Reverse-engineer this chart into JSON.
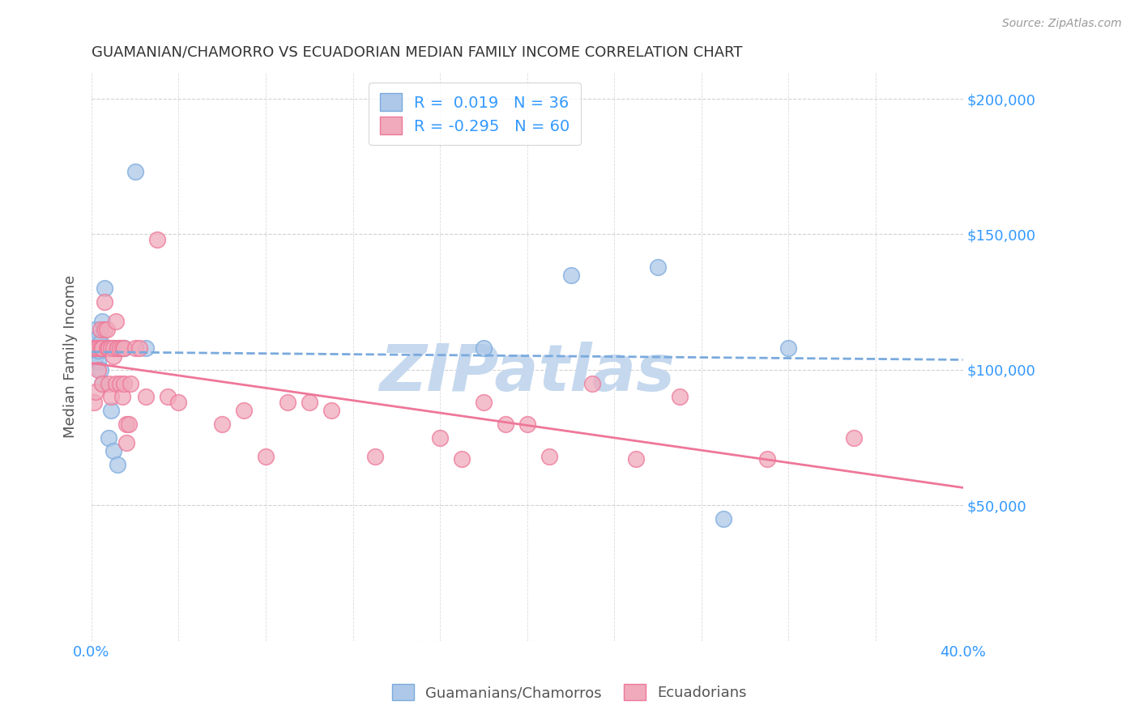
{
  "title": "GUAMANIAN/CHAMORRO VS ECUADORIAN MEDIAN FAMILY INCOME CORRELATION CHART",
  "source": "Source: ZipAtlas.com",
  "ylabel": "Median Family Income",
  "right_yticks": [
    0,
    50000,
    100000,
    150000,
    200000
  ],
  "right_yticklabels": [
    "",
    "$50,000",
    "$100,000",
    "$150,000",
    "$200,000"
  ],
  "legend_blue_r": "R =  0.019",
  "legend_blue_n": "N = 36",
  "legend_pink_r": "R = -0.295",
  "legend_pink_n": "N = 60",
  "watermark": "ZIPatlas",
  "blue_scatter_x": [
    0.001,
    0.001,
    0.002,
    0.002,
    0.002,
    0.003,
    0.003,
    0.003,
    0.003,
    0.004,
    0.004,
    0.004,
    0.004,
    0.005,
    0.005,
    0.005,
    0.006,
    0.006,
    0.006,
    0.007,
    0.007,
    0.007,
    0.008,
    0.008,
    0.009,
    0.01,
    0.01,
    0.012,
    0.015,
    0.02,
    0.025,
    0.18,
    0.22,
    0.26,
    0.29,
    0.32
  ],
  "blue_scatter_y": [
    110000,
    108000,
    108000,
    105000,
    115000,
    108000,
    103000,
    112000,
    107000,
    108000,
    100000,
    108000,
    110000,
    95000,
    118000,
    108000,
    130000,
    108000,
    108000,
    108000,
    108000,
    108000,
    108000,
    75000,
    85000,
    70000,
    108000,
    65000,
    108000,
    173000,
    108000,
    108000,
    135000,
    138000,
    45000,
    108000
  ],
  "pink_scatter_x": [
    0.001,
    0.001,
    0.002,
    0.002,
    0.003,
    0.003,
    0.004,
    0.004,
    0.005,
    0.005,
    0.005,
    0.006,
    0.006,
    0.007,
    0.007,
    0.008,
    0.008,
    0.008,
    0.009,
    0.009,
    0.01,
    0.01,
    0.011,
    0.011,
    0.012,
    0.012,
    0.013,
    0.013,
    0.014,
    0.014,
    0.015,
    0.015,
    0.016,
    0.016,
    0.017,
    0.018,
    0.02,
    0.022,
    0.025,
    0.03,
    0.035,
    0.04,
    0.06,
    0.07,
    0.08,
    0.09,
    0.1,
    0.11,
    0.13,
    0.16,
    0.17,
    0.18,
    0.19,
    0.2,
    0.21,
    0.23,
    0.25,
    0.27,
    0.31,
    0.35
  ],
  "pink_scatter_y": [
    108000,
    88000,
    108000,
    92000,
    108000,
    100000,
    115000,
    108000,
    108000,
    108000,
    95000,
    125000,
    115000,
    115000,
    108000,
    108000,
    108000,
    95000,
    108000,
    90000,
    105000,
    108000,
    95000,
    118000,
    108000,
    108000,
    95000,
    108000,
    90000,
    108000,
    95000,
    108000,
    73000,
    80000,
    80000,
    95000,
    108000,
    108000,
    90000,
    148000,
    90000,
    88000,
    80000,
    85000,
    68000,
    88000,
    88000,
    85000,
    68000,
    75000,
    67000,
    88000,
    80000,
    80000,
    68000,
    95000,
    67000,
    90000,
    67000,
    75000
  ],
  "blue_color": "#adc8e8",
  "pink_color": "#f0aabb",
  "blue_line_color": "#7aaadd",
  "pink_line_color": "#ee7799",
  "bg_color": "#ffffff",
  "grid_color": "#cccccc",
  "watermark_color": "#c5d8ee",
  "xlim": [
    0,
    0.4
  ],
  "ylim": [
    0,
    210000
  ],
  "figsize": [
    14.06,
    8.92
  ],
  "dpi": 100
}
